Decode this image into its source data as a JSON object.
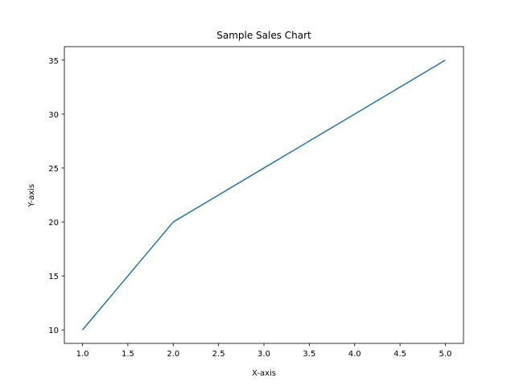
{
  "chart_data": {
    "type": "line",
    "title": "Sample Sales Chart",
    "xlabel": "X-axis",
    "ylabel": "Y-axis",
    "x": [
      1,
      2,
      3,
      4,
      5
    ],
    "series": [
      {
        "values": [
          10,
          20,
          25,
          30,
          35
        ],
        "color": "#1f77b4"
      }
    ],
    "xlim": [
      0.8,
      5.2
    ],
    "ylim": [
      8.75,
      36.25
    ],
    "xticks": [
      1.0,
      1.5,
      2.0,
      2.5,
      3.0,
      3.5,
      4.0,
      4.5,
      5.0
    ],
    "xtick_labels": [
      "1.0",
      "1.5",
      "2.0",
      "2.5",
      "3.0",
      "3.5",
      "4.0",
      "4.5",
      "5.0"
    ],
    "yticks": [
      10,
      15,
      20,
      25,
      30,
      35
    ],
    "ytick_labels": [
      "10",
      "15",
      "20",
      "25",
      "30",
      "35"
    ],
    "grid": false,
    "legend": false
  }
}
